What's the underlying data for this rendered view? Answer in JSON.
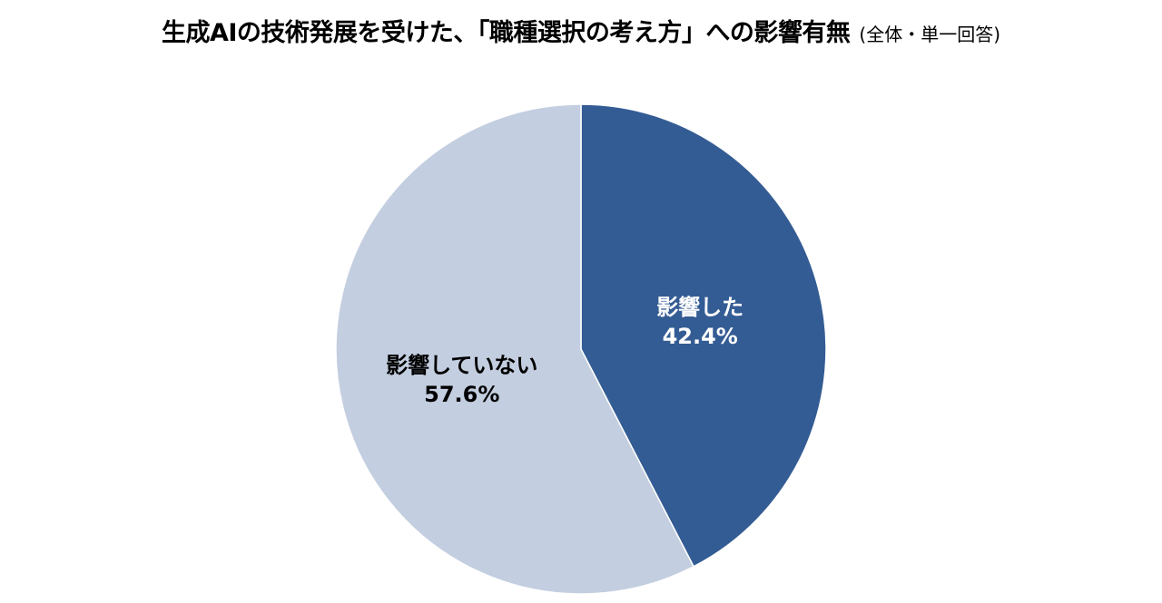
{
  "chart_data": {
    "type": "pie",
    "title": "生成AIの技術発展を受けた、「職種選択の考え方」への影響有無",
    "subtitle": "(全体・単一回答)",
    "slices": [
      {
        "label": "影響した",
        "value": 42.4,
        "value_label": "42.4%",
        "color": "#345C94",
        "text_color": "#FFFFFF"
      },
      {
        "label": "影響していない",
        "value": 57.6,
        "value_label": "57.6%",
        "color": "#C3CEE0",
        "text_color": "#000000"
      }
    ],
    "start_angle": "12 o'clock",
    "direction": "clockwise",
    "legend": "none"
  }
}
